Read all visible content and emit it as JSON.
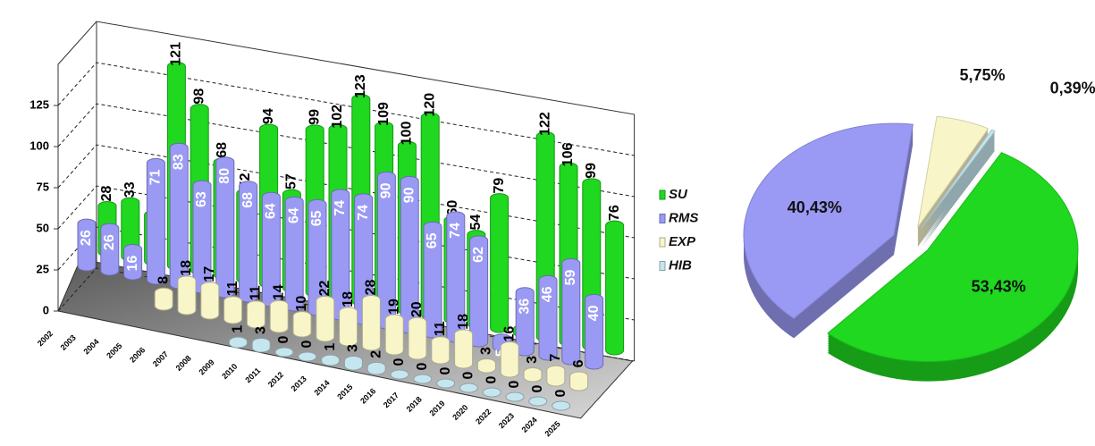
{
  "chart_data": [
    {
      "type": "bar3d",
      "categories": [
        "2002",
        "2003",
        "2004",
        "2005",
        "2006",
        "2007",
        "2008",
        "2009",
        "2010",
        "2011",
        "2012",
        "2013",
        "2014",
        "2015",
        "2016",
        "2017",
        "2018",
        "2019",
        "2020",
        "2022",
        "2023",
        "2024",
        "2025"
      ],
      "series": [
        {
          "name": "SU",
          "color": "#1fd81f",
          "values": [
            28,
            33,
            28,
            121,
            98,
            68,
            52,
            94,
            57,
            99,
            102,
            123,
            109,
            100,
            120,
            60,
            54,
            79,
            2,
            122,
            106,
            99,
            76
          ]
        },
        {
          "name": "RMS",
          "color": "#9a9af5",
          "values": [
            26,
            26,
            16,
            71,
            83,
            63,
            80,
            68,
            64,
            64,
            65,
            74,
            74,
            90,
            90,
            65,
            74,
            62,
            5,
            36,
            46,
            59,
            40
          ]
        },
        {
          "name": "EXP",
          "color": "#f8f5c8",
          "values": [
            null,
            null,
            null,
            null,
            8,
            18,
            17,
            11,
            11,
            14,
            10,
            22,
            18,
            28,
            19,
            20,
            11,
            18,
            3,
            16,
            3,
            7,
            6
          ]
        },
        {
          "name": "HIB",
          "color": "#c6e6ef",
          "values": [
            null,
            null,
            null,
            null,
            null,
            null,
            null,
            null,
            1,
            3,
            0,
            0,
            1,
            3,
            2,
            0,
            0,
            0,
            0,
            0,
            0,
            0,
            0
          ]
        }
      ],
      "ylim": [
        0,
        150
      ],
      "yticks": [
        0,
        25,
        50,
        75,
        100,
        125
      ],
      "grid": true
    },
    {
      "type": "pie",
      "values": [
        53.43,
        40.43,
        5.75,
        0.39
      ],
      "value_labels": [
        "53,43%",
        "40,43%",
        "5,75%",
        "0,39%"
      ],
      "colors": [
        "#1fd81f",
        "#9a9af5",
        "#f8f5c8",
        "#c6e6ef"
      ]
    }
  ]
}
